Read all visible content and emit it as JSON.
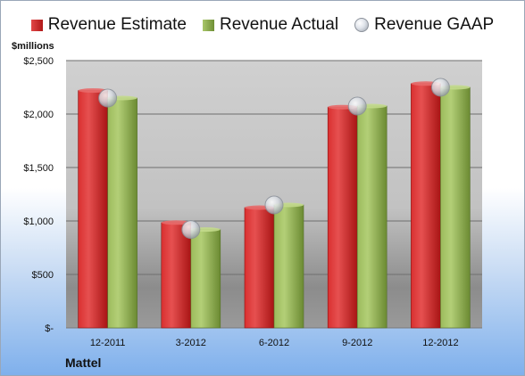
{
  "chart_data": {
    "type": "bar",
    "ylabel": "$millions",
    "company": "Mattel",
    "categories": [
      "12-2011",
      "3-2012",
      "6-2012",
      "9-2012",
      "12-2012"
    ],
    "series": [
      {
        "name": "Revenue Estimate",
        "values": [
          2220,
          985,
          1125,
          2065,
          2285
        ],
        "color": "#c41e1e"
      },
      {
        "name": "Revenue Actual",
        "values": [
          2150,
          920,
          1150,
          2075,
          2250
        ],
        "color": "#87a64a"
      },
      {
        "name": "Revenue GAAP",
        "values": [
          2150,
          920,
          1150,
          2075,
          2250
        ],
        "color": "#c8ccd3"
      }
    ],
    "ylim": [
      0,
      2500
    ],
    "yticks": [
      0,
      500,
      1000,
      1500,
      2000,
      2500
    ],
    "ytick_labels": [
      "$-",
      "$500",
      "$1,000",
      "$1,500",
      "$2,000",
      "$2,500"
    ],
    "grid": true,
    "legend": "top"
  }
}
